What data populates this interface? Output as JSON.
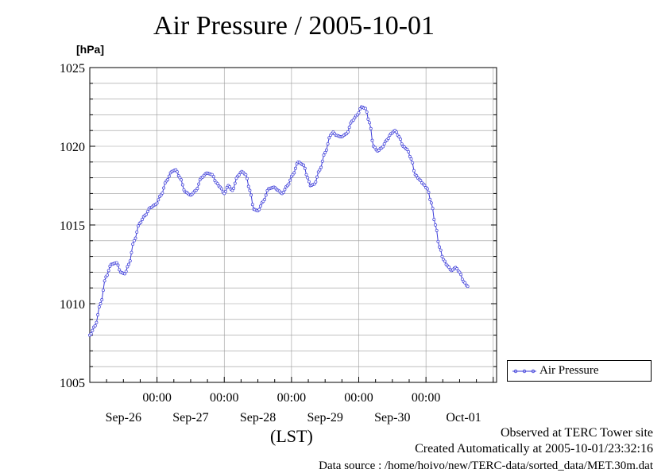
{
  "title": "Air Pressure / 2005-10-01",
  "footer": {
    "line1": "Observed at TERC Tower site",
    "line2": "Created Automatically at 2005-10-01/23:32:16",
    "line3": "Data source : /home/hoivo/new/TERC-data/sorted_data/MET.30m.dat"
  },
  "colors": {
    "series": "#3a3ad8",
    "grid": "#9a9a9a",
    "axis": "#000000"
  },
  "chart_data": {
    "type": "line",
    "title": "Air Pressure / 2005-10-01",
    "xlabel": "(LST)",
    "ylabel": "[hPa]",
    "ylim": [
      1005,
      1025
    ],
    "xlim": [
      0,
      6
    ],
    "grid": true,
    "legend_placement": "right",
    "x_ticks": [
      {
        "x": 1,
        "time": "00:00",
        "date": "Sep-26"
      },
      {
        "x": 2,
        "time": "00:00",
        "date": "Sep-27"
      },
      {
        "x": 3,
        "time": "00:00",
        "date": "Sep-28"
      },
      {
        "x": 4,
        "time": "00:00",
        "date": "Sep-29"
      },
      {
        "x": 5,
        "time": "00:00",
        "date": "Sep-30"
      },
      {
        "x": 6,
        "time": "",
        "date": "Oct-01"
      }
    ],
    "y_ticks": [
      1005,
      1010,
      1015,
      1020,
      1025
    ],
    "series": [
      {
        "name": "Air Pressure",
        "points": [
          [
            0.0,
            1008.0
          ],
          [
            0.08,
            1008.6
          ],
          [
            0.16,
            1010.0
          ],
          [
            0.24,
            1011.7
          ],
          [
            0.32,
            1012.5
          ],
          [
            0.4,
            1012.6
          ],
          [
            0.46,
            1012.0
          ],
          [
            0.52,
            1011.9
          ],
          [
            0.58,
            1012.5
          ],
          [
            0.66,
            1014.0
          ],
          [
            0.74,
            1015.1
          ],
          [
            0.82,
            1015.6
          ],
          [
            0.9,
            1016.1
          ],
          [
            0.98,
            1016.3
          ],
          [
            1.06,
            1016.9
          ],
          [
            1.14,
            1017.8
          ],
          [
            1.22,
            1018.4
          ],
          [
            1.28,
            1018.5
          ],
          [
            1.34,
            1018.0
          ],
          [
            1.42,
            1017.1
          ],
          [
            1.5,
            1016.9
          ],
          [
            1.58,
            1017.2
          ],
          [
            1.66,
            1018.0
          ],
          [
            1.74,
            1018.3
          ],
          [
            1.82,
            1018.2
          ],
          [
            1.88,
            1017.7
          ],
          [
            1.94,
            1017.4
          ],
          [
            2.0,
            1017.0
          ],
          [
            2.06,
            1017.5
          ],
          [
            2.12,
            1017.2
          ],
          [
            2.2,
            1018.1
          ],
          [
            2.26,
            1018.4
          ],
          [
            2.32,
            1018.2
          ],
          [
            2.38,
            1017.2
          ],
          [
            2.44,
            1016.0
          ],
          [
            2.5,
            1015.9
          ],
          [
            2.58,
            1016.5
          ],
          [
            2.66,
            1017.3
          ],
          [
            2.74,
            1017.4
          ],
          [
            2.8,
            1017.2
          ],
          [
            2.86,
            1017.0
          ],
          [
            2.94,
            1017.5
          ],
          [
            3.02,
            1018.2
          ],
          [
            3.1,
            1019.0
          ],
          [
            3.18,
            1018.8
          ],
          [
            3.24,
            1018.0
          ],
          [
            3.28,
            1017.5
          ],
          [
            3.34,
            1017.6
          ],
          [
            3.42,
            1018.5
          ],
          [
            3.5,
            1019.6
          ],
          [
            3.58,
            1020.7
          ],
          [
            3.62,
            1020.9
          ],
          [
            3.66,
            1020.7
          ],
          [
            3.74,
            1020.6
          ],
          [
            3.82,
            1020.8
          ],
          [
            3.9,
            1021.6
          ],
          [
            3.98,
            1022.0
          ],
          [
            4.04,
            1022.5
          ],
          [
            4.1,
            1022.4
          ],
          [
            4.16,
            1021.5
          ],
          [
            4.22,
            1020.0
          ],
          [
            4.28,
            1019.7
          ],
          [
            4.34,
            1019.9
          ],
          [
            4.42,
            1020.4
          ],
          [
            4.48,
            1020.8
          ],
          [
            4.54,
            1021.0
          ],
          [
            4.6,
            1020.6
          ],
          [
            4.66,
            1020.0
          ],
          [
            4.72,
            1019.8
          ],
          [
            4.78,
            1019.2
          ],
          [
            4.84,
            1018.2
          ],
          [
            4.9,
            1017.9
          ],
          [
            4.96,
            1017.6
          ],
          [
            5.02,
            1017.3
          ],
          [
            5.08,
            1016.4
          ],
          [
            5.14,
            1015.0
          ],
          [
            5.2,
            1013.6
          ],
          [
            5.26,
            1012.8
          ],
          [
            5.32,
            1012.4
          ],
          [
            5.38,
            1012.1
          ],
          [
            5.44,
            1012.3
          ],
          [
            5.5,
            1012.0
          ],
          [
            5.56,
            1011.4
          ],
          [
            5.62,
            1011.1
          ]
        ]
      }
    ]
  }
}
